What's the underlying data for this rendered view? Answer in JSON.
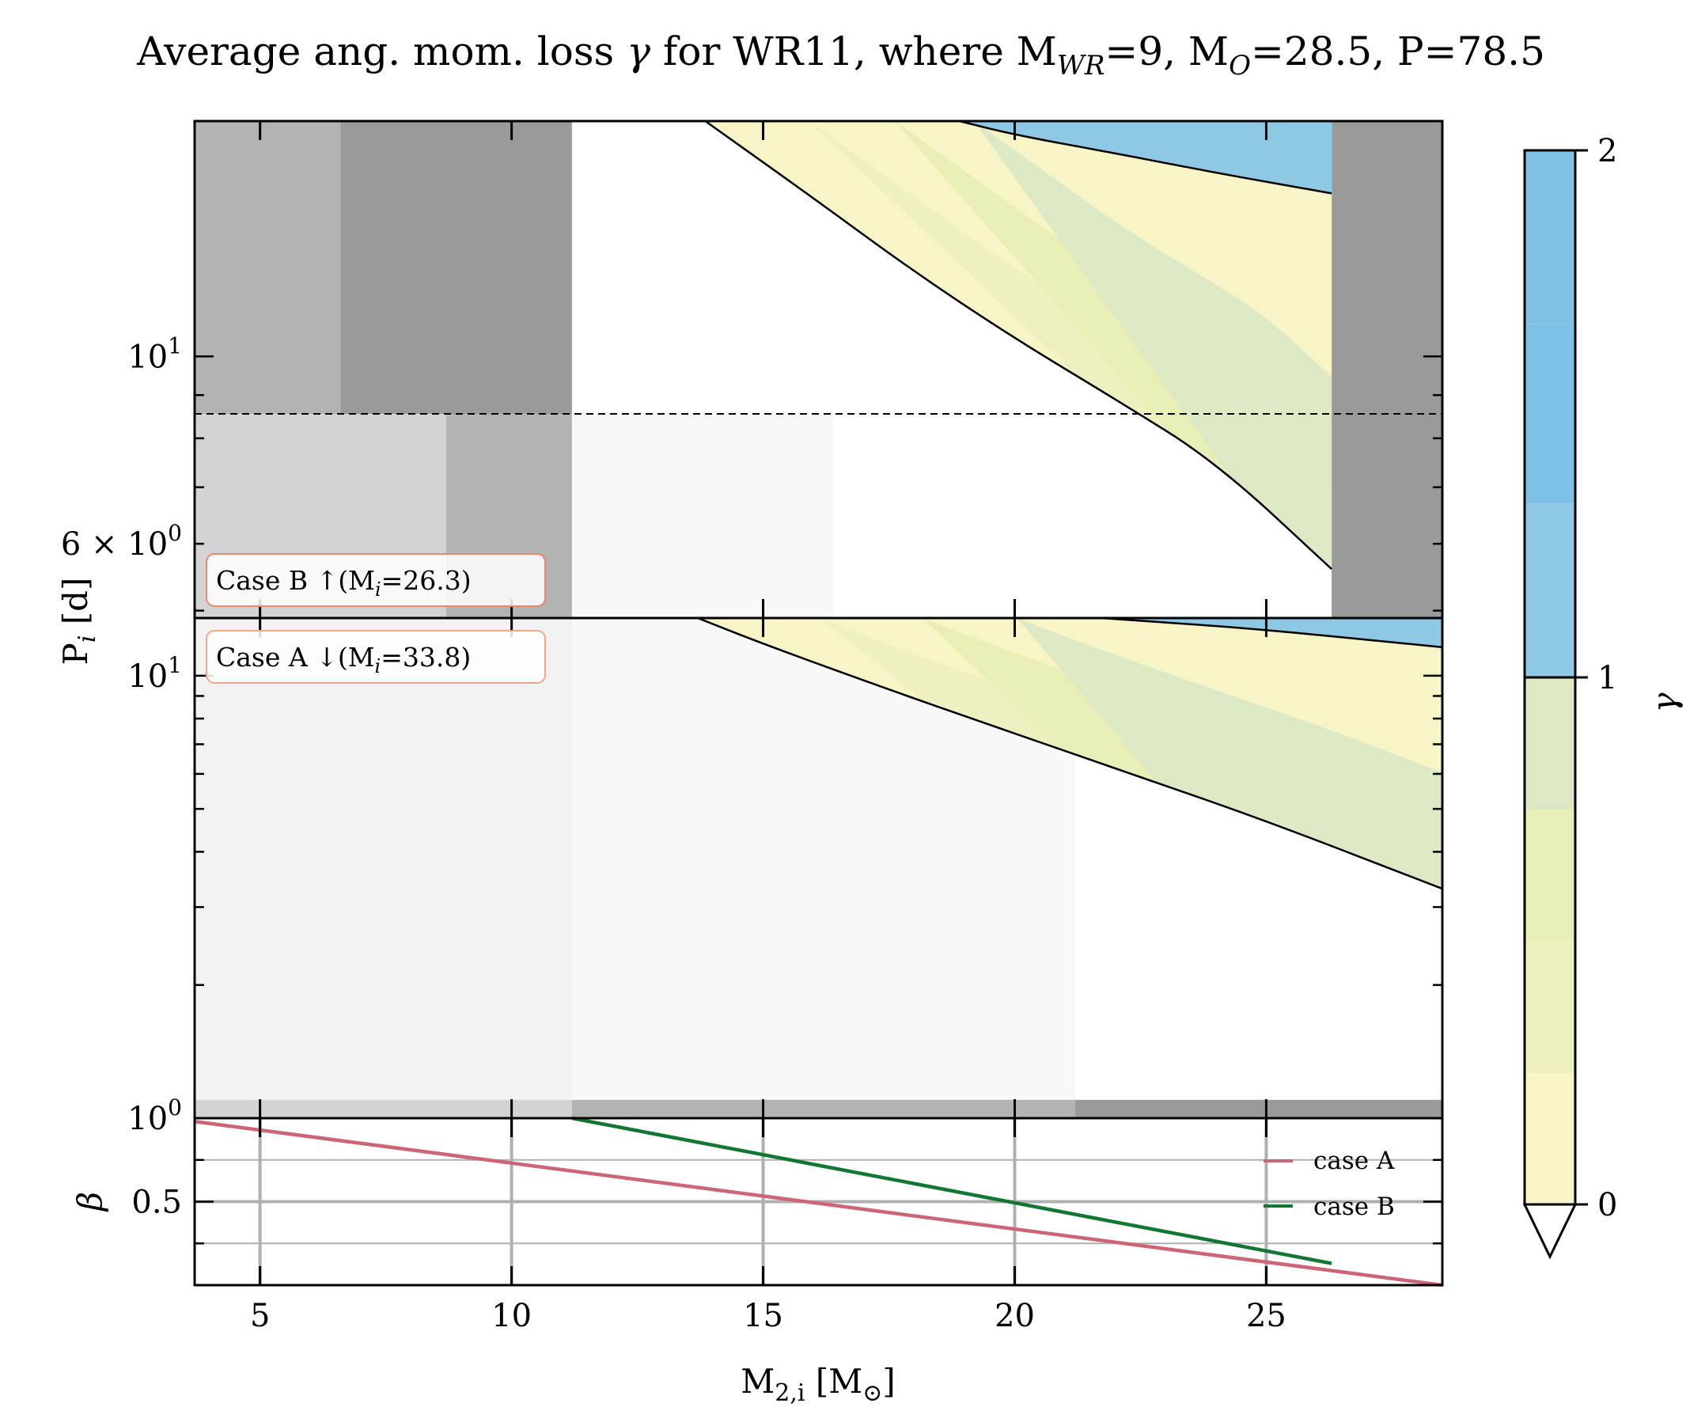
{
  "title": "Average ang. mom. loss γ for WR11, where M_WR=9, M_O=28.5, P=78.5",
  "title_parts": {
    "main": "Average ang. mom. loss ",
    "gamma": "γ",
    "for": " for WR11, where M",
    "wr_sub": "WR",
    "wr_val": "=9, M",
    "o_sub": "O",
    "o_val": "=28.5, P=78.5"
  },
  "shared_x_label": "M2,i [M⊙]",
  "shared_x_label_parts": {
    "m": "M",
    "sub": "2,i",
    "rest": " [M",
    "sun": "⊙",
    "close": "]"
  },
  "shared_y_label": "Pi [d]",
  "shared_y_label_parts": {
    "p": "P",
    "sub": "i",
    "rest": " [d]"
  },
  "annotations": {
    "case_b": "Case B ↑(Mi=26.3)",
    "case_b_parts": {
      "pre": "Case B ↑(M",
      "sub": "i",
      "post": "=26.3)"
    },
    "case_a": "Case A ↓(Mi=33.8)",
    "case_a_parts": {
      "pre": "Case A ↓(M",
      "sub": "i",
      "post": "=33.8)"
    }
  },
  "colors": {
    "case_a": "#cc6677",
    "case_b": "#117733",
    "annotation_edge": "#f4a582",
    "gamma_levels": [
      "#f7f4c6",
      "#eff0bf",
      "#e8eeb5",
      "#dce9c4",
      "#8ec8e4",
      "#7ec1e7",
      "#7fc2e6",
      "#7baee2"
    ],
    "gray_levels": [
      "#b3b3b3",
      "#9a9a9a",
      "#d3d3d3",
      "#f2f2f2",
      "#f8f8f8"
    ]
  },
  "chart_data": [
    {
      "type": "heatmap",
      "panel": "top",
      "case": "B",
      "xlim": [
        3.7,
        28.5
      ],
      "ylim": [
        4.9,
        19
      ],
      "yscale": "log",
      "ytick_labels": [
        "10^1",
        "6 × 10^0"
      ],
      "ytick_parts": [
        {
          "base": "10",
          "exp": "1",
          "value": 10
        },
        {
          "base": "6 × 10",
          "exp": "0",
          "value": 6
        }
      ],
      "xticks": [
        5,
        10,
        15,
        20,
        25
      ],
      "dashed_hline": 8.55,
      "vertical_bands": [
        {
          "x0": 3.7,
          "x1": 6.6,
          "y0": 8.55,
          "y1": 19,
          "color": "#b3b3b3"
        },
        {
          "x0": 6.6,
          "x1": 11.2,
          "y0": 8.55,
          "y1": 19,
          "color": "#9a9a9a"
        },
        {
          "x0": 3.7,
          "x1": 8.7,
          "y0": 4.9,
          "y1": 8.55,
          "color": "#d3d3d3"
        },
        {
          "x0": 8.7,
          "x1": 11.2,
          "y0": 4.9,
          "y1": 8.55,
          "color": "#b3b3b3"
        },
        {
          "x0": 11.2,
          "x1": 16.4,
          "y0": 4.9,
          "y1": 8.55,
          "color": "#f8f8f8"
        },
        {
          "x0": 26.3,
          "x1": 28.5,
          "y0": 4.9,
          "y1": 19,
          "color": "#9a9a9a"
        }
      ],
      "gamma_region_xmax": 26.3,
      "gamma0_boundary": {
        "x": [
          13.85,
          16.0,
          18.0,
          20.0,
          22.0,
          24.0,
          26.3
        ],
        "y": [
          19,
          15.4,
          12.6,
          10.5,
          8.9,
          7.5,
          5.6
        ]
      },
      "gamma1_boundary": {
        "x": [
          18.9,
          20.0,
          22.0,
          24.0,
          26.3
        ],
        "y": [
          19,
          18.3,
          17.4,
          16.5,
          15.6
        ]
      }
    },
    {
      "type": "heatmap",
      "panel": "middle",
      "case": "A",
      "xlim": [
        3.7,
        28.5
      ],
      "ylim": [
        1.0,
        13.5
      ],
      "yscale": "log",
      "ytick_labels": [
        "10^1",
        "10^0"
      ],
      "ytick_parts": [
        {
          "base": "10",
          "exp": "1",
          "value": 10
        },
        {
          "base": "10",
          "exp": "0",
          "value": 1
        }
      ],
      "xticks": [
        5,
        10,
        15,
        20,
        25
      ],
      "vertical_bands": [
        {
          "x0": 3.7,
          "x1": 11.2,
          "y0": 1.1,
          "y1": 13.5,
          "color": "#f2f2f2"
        },
        {
          "x0": 11.2,
          "x1": 21.2,
          "y0": 1.1,
          "y1": 13.5,
          "color": "#f8f8f8"
        },
        {
          "x0": 3.7,
          "x1": 11.2,
          "y0": 1.0,
          "y1": 1.1,
          "color": "#d3d3d3"
        },
        {
          "x0": 11.2,
          "x1": 21.2,
          "y0": 1.0,
          "y1": 1.1,
          "color": "#b3b3b3"
        },
        {
          "x0": 21.2,
          "x1": 28.5,
          "y0": 1.0,
          "y1": 1.1,
          "color": "#9a9a9a"
        }
      ],
      "gamma0_boundary": {
        "x": [
          13.7,
          15.0,
          17.5,
          20.0,
          22.5,
          25.0,
          28.5
        ],
        "y": [
          13.5,
          11.8,
          9.3,
          7.4,
          5.9,
          4.7,
          3.3
        ]
      },
      "gamma1_boundary": {
        "x": [
          21.7,
          23.0,
          25.0,
          28.5
        ],
        "y": [
          13.5,
          13.2,
          12.7,
          11.6
        ]
      }
    },
    {
      "type": "line",
      "panel": "bottom",
      "xlim": [
        3.7,
        28.5
      ],
      "ylim": [
        0.0,
        1.0
      ],
      "ylabel": "β",
      "ytick_labels": [
        "0.5"
      ],
      "yticks": [
        0.5
      ],
      "ygrid": [
        0.25,
        0.5,
        0.75
      ],
      "xticks": [
        5,
        10,
        15,
        20,
        25
      ],
      "xtick_labels": [
        "5",
        "10",
        "15",
        "20",
        "25"
      ],
      "series": [
        {
          "name": "case A",
          "x": [
            3.7,
            28.5
          ],
          "y": [
            0.98,
            0.0
          ]
        },
        {
          "name": "case B",
          "x": [
            11.2,
            26.3
          ],
          "y": [
            1.0,
            0.13
          ]
        }
      ],
      "legend_location": "right"
    },
    {
      "type": "colorbar",
      "label": "γ",
      "range": [
        0,
        2
      ],
      "tick_labels": [
        "2",
        "1",
        "0"
      ],
      "ticks": [
        2,
        1,
        0
      ],
      "levels": [
        0,
        0.25,
        0.5,
        0.75,
        1.0,
        1.33,
        1.67,
        2.0
      ],
      "extend": "min"
    }
  ]
}
